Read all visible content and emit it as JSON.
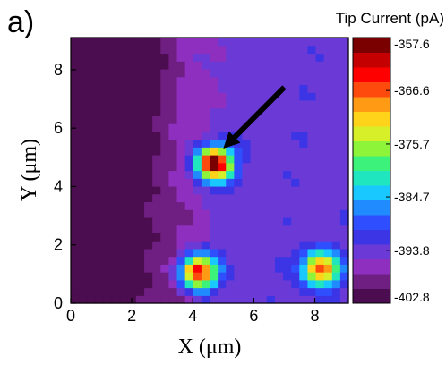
{
  "panel_label": "a)",
  "colormap": [
    "#4b0d4f",
    "#6f1f82",
    "#8e2fbf",
    "#6b3ad6",
    "#3c35e6",
    "#2f4fff",
    "#1f8bff",
    "#18c8ff",
    "#20e6c0",
    "#3cf27a",
    "#8ef43a",
    "#d6ef28",
    "#ffd31a",
    "#ff9a14",
    "#ff4a0e",
    "#ff0000",
    "#c40000",
    "#7a0000"
  ],
  "chart_data": {
    "type": "heatmap",
    "xlabel": "X (μm)",
    "ylabel": "Y (μm)",
    "x_ticks": [
      "0",
      "2",
      "4",
      "6",
      "8"
    ],
    "y_ticks": [
      "0",
      "2",
      "4",
      "6",
      "8"
    ],
    "xlim": [
      0,
      9.1
    ],
    "ylim": [
      0,
      9.1
    ],
    "colorbar": {
      "title": "Tip Current (pA)",
      "labels": [
        "-357.6",
        "-366.6",
        "-375.7",
        "-384.7",
        "-393.8",
        "-402.8"
      ],
      "range": [
        -402.8,
        -357.6
      ]
    },
    "features": [
      {
        "x": 4.7,
        "y": 4.8,
        "peak": -357.6
      },
      {
        "x": 4.2,
        "y": 1.1,
        "peak": -363.0
      },
      {
        "x": 8.2,
        "y": 1.2,
        "peak": -366.0
      }
    ],
    "background": {
      "left": -402.0,
      "right": -393.8
    },
    "annotation": {
      "type": "arrow",
      "from": [
        7.0,
        7.4
      ],
      "to": [
        5.0,
        5.3
      ]
    }
  }
}
